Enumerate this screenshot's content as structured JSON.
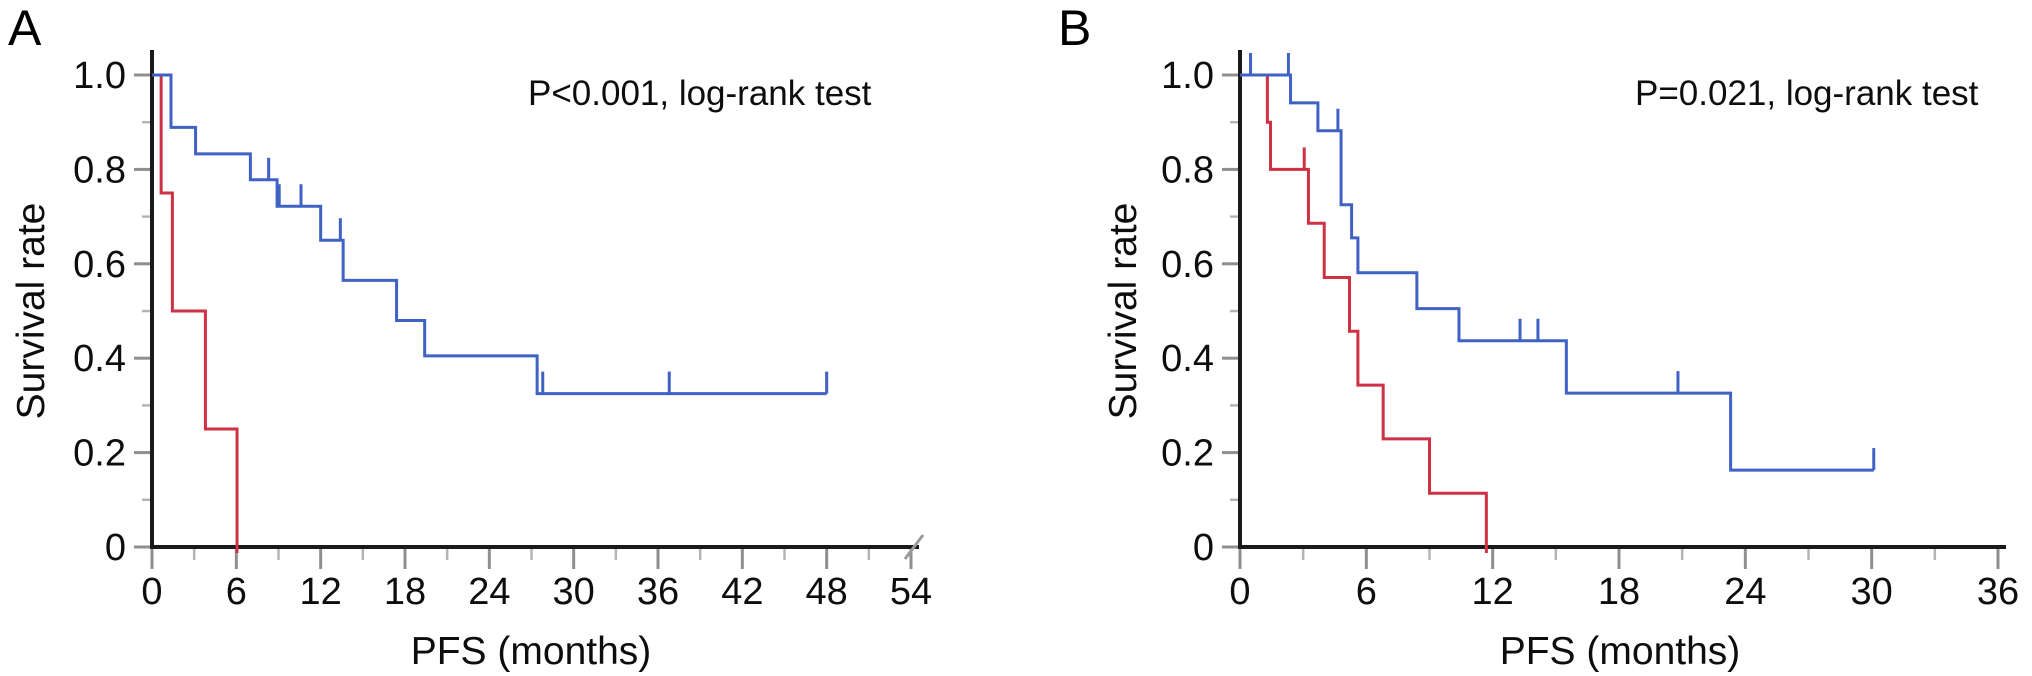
{
  "chart_data": [
    {
      "type": "line",
      "subtype": "kaplan-meier-step",
      "label": "A",
      "annotation": "P<0.001, log-rank test",
      "xlabel": "PFS (months)",
      "ylabel": "Survival rate",
      "xlim": [
        0,
        54
      ],
      "ylim": [
        0,
        1.0
      ],
      "x_ticks": [
        {
          "v": 0,
          "label": "0"
        },
        {
          "v": 6,
          "label": "6"
        },
        {
          "v": 12,
          "label": "12"
        },
        {
          "v": 18,
          "label": "18"
        },
        {
          "v": 24,
          "label": "24"
        },
        {
          "v": 30,
          "label": "30"
        },
        {
          "v": 36,
          "label": "36"
        },
        {
          "v": 42,
          "label": "42"
        },
        {
          "v": 48,
          "label": "48"
        },
        {
          "v": 54,
          "label": "54"
        }
      ],
      "x_minor_ticks": [
        3,
        9,
        15,
        21,
        27,
        33,
        39,
        45,
        51
      ],
      "y_ticks": [
        {
          "v": 1.0,
          "label": "1.0"
        },
        {
          "v": 0.8,
          "label": "0.8"
        },
        {
          "v": 0.6,
          "label": "0.6"
        },
        {
          "v": 0.4,
          "label": "0.4"
        },
        {
          "v": 0.2,
          "label": "0.2"
        },
        {
          "v": 0,
          "label": "0"
        }
      ],
      "y_minor_ticks": [
        0.9,
        0.7,
        0.5,
        0.3,
        0.1
      ],
      "axis_break_at_end": true,
      "grid": false,
      "series": [
        {
          "name": "red-group",
          "color": "#ce3044",
          "steps": [
            [
              0,
              1.0
            ],
            [
              0.65,
              0.75
            ],
            [
              1.45,
              0.5
            ],
            [
              3.8,
              0.25
            ],
            [
              6.05,
              0
            ]
          ],
          "end_x": 6.05,
          "end_censor_tick": false,
          "censors": []
        },
        {
          "name": "blue-group",
          "color": "#3f62c4",
          "steps": [
            [
              0,
              1.0
            ],
            [
              1.35,
              0.889
            ],
            [
              3.1,
              0.833
            ],
            [
              7.0,
              0.778
            ],
            [
              8.9,
              0.722
            ],
            [
              12.0,
              0.65
            ],
            [
              13.6,
              0.565
            ],
            [
              17.4,
              0.48
            ],
            [
              19.4,
              0.405
            ],
            [
              27.4,
              0.325
            ]
          ],
          "end_x": 48.0,
          "end_censor_tick": true,
          "censors": [
            [
              8.3,
              0.778
            ],
            [
              9.05,
              0.722
            ],
            [
              10.6,
              0.722
            ],
            [
              13.4,
              0.65
            ],
            [
              27.8,
              0.325
            ],
            [
              36.8,
              0.325
            ]
          ]
        }
      ]
    },
    {
      "type": "line",
      "subtype": "kaplan-meier-step",
      "label": "B",
      "annotation": "P=0.021, log-rank test",
      "xlabel": "PFS (months)",
      "ylabel": "Survival rate",
      "xlim": [
        0,
        36
      ],
      "ylim": [
        0,
        1.0
      ],
      "x_ticks": [
        {
          "v": 0,
          "label": "0"
        },
        {
          "v": 6,
          "label": "6"
        },
        {
          "v": 12,
          "label": "12"
        },
        {
          "v": 18,
          "label": "18"
        },
        {
          "v": 24,
          "label": "24"
        },
        {
          "v": 30,
          "label": "30"
        },
        {
          "v": 36,
          "label": "36"
        }
      ],
      "x_minor_ticks": [
        3,
        9,
        15,
        21,
        27,
        33
      ],
      "y_ticks": [
        {
          "v": 1.0,
          "label": "1.0"
        },
        {
          "v": 0.8,
          "label": "0.8"
        },
        {
          "v": 0.6,
          "label": "0.6"
        },
        {
          "v": 0.4,
          "label": "0.4"
        },
        {
          "v": 0.2,
          "label": "0.2"
        },
        {
          "v": 0,
          "label": "0"
        }
      ],
      "y_minor_ticks": [
        0.9,
        0.7,
        0.5,
        0.3,
        0.1
      ],
      "axis_break_at_end": false,
      "grid": false,
      "series": [
        {
          "name": "red-group",
          "color": "#ce3044",
          "steps": [
            [
              0,
              1.0
            ],
            [
              1.3,
              0.9
            ],
            [
              1.45,
              0.8
            ],
            [
              3.25,
              0.686
            ],
            [
              4.0,
              0.571
            ],
            [
              5.2,
              0.457
            ],
            [
              5.6,
              0.343
            ],
            [
              6.8,
              0.229
            ],
            [
              9.0,
              0.114
            ],
            [
              11.7,
              0
            ]
          ],
          "end_x": 11.7,
          "end_censor_tick": false,
          "censors": [
            [
              3.05,
              0.8
            ]
          ]
        },
        {
          "name": "blue-group",
          "color": "#3f62c4",
          "steps": [
            [
              0,
              1.0
            ],
            [
              2.4,
              0.941
            ],
            [
              3.7,
              0.882
            ],
            [
              4.8,
              0.725
            ],
            [
              5.3,
              0.655
            ],
            [
              5.6,
              0.581
            ],
            [
              8.4,
              0.505
            ],
            [
              10.4,
              0.437
            ],
            [
              15.5,
              0.326
            ],
            [
              23.3,
              0.163
            ]
          ],
          "end_x": 30.1,
          "end_censor_tick": true,
          "censors": [
            [
              0.5,
              1.0
            ],
            [
              2.3,
              1.0
            ],
            [
              4.65,
              0.882
            ],
            [
              13.3,
              0.437
            ],
            [
              14.15,
              0.437
            ],
            [
              20.8,
              0.326
            ]
          ]
        }
      ]
    }
  ],
  "style_colors": {
    "axis": "#1a1a1a",
    "major_tick": "#8f8f8f",
    "minor_tick": "#b5b5b5",
    "axis_break": "#9a9a9a",
    "text": "#0d0d0d"
  }
}
